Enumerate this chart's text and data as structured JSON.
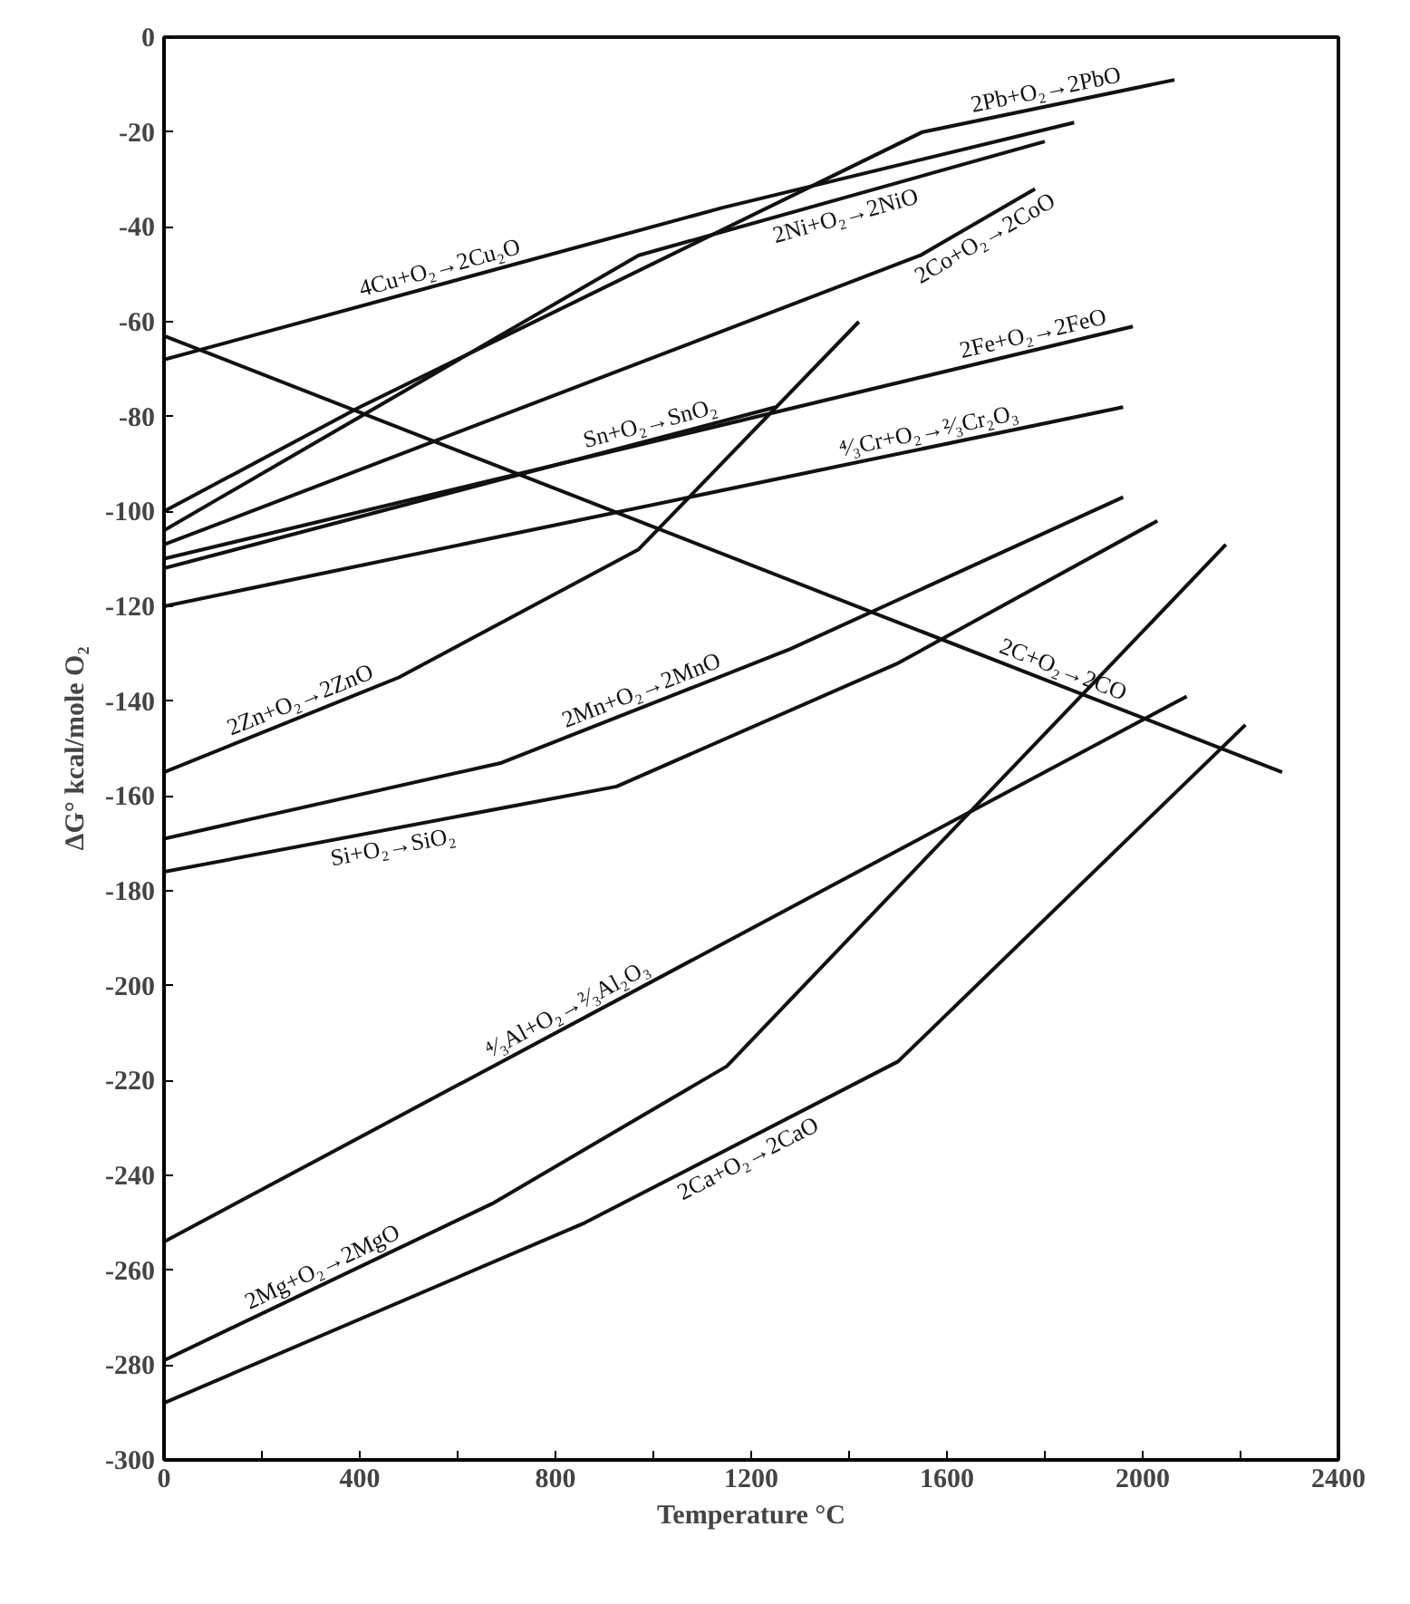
{
  "chart_data": {
    "type": "line",
    "xlabel": "Temperature °C",
    "ylabel": "ΔG° kcal/mole O₂",
    "xlim": [
      0,
      2400
    ],
    "ylim": [
      -300,
      0
    ],
    "xticks": [
      0,
      {
        "value": 200,
        "label": null
      },
      400,
      {
        "value": 600,
        "label": null
      },
      800,
      {
        "value": 1000,
        "label": null
      },
      1200,
      {
        "value": 1400,
        "label": null
      },
      1600,
      {
        "value": 1800,
        "label": null
      },
      2000,
      {
        "value": 2200,
        "label": null
      },
      2400
    ],
    "yticks": [
      -300,
      -280,
      -260,
      -240,
      -220,
      -200,
      -180,
      -160,
      -140,
      -120,
      -100,
      -80,
      -60,
      -40,
      -20,
      0
    ],
    "grid": false,
    "line_style": "solid",
    "series": [
      {
        "color": "#111111",
        "x": [
          0,
          1140,
          1860
        ],
        "values": [
          -68,
          -36,
          -18
        ]
      },
      {
        "color": "#111111",
        "x": [
          0,
          400,
          1550,
          2065
        ],
        "values": [
          -100,
          -78,
          -20,
          -9
        ]
      },
      {
        "color": "#111111",
        "x": [
          0,
          970,
          1800
        ],
        "values": [
          -104,
          -46,
          -22
        ]
      },
      {
        "color": "#111111",
        "x": [
          0,
          1546,
          1780
        ],
        "values": [
          -107,
          -46,
          -32
        ]
      },
      {
        "color": "#111111",
        "x": [
          0,
          1980
        ],
        "values": [
          -110,
          -61
        ]
      },
      {
        "color": "#111111",
        "x": [
          0,
          1250
        ],
        "values": [
          -112,
          -78
        ]
      },
      {
        "color": "#111111",
        "x": [
          0,
          480,
          970,
          1420
        ],
        "values": [
          -155,
          -135,
          -108,
          -60
        ]
      },
      {
        "color": "#111111",
        "x": [
          0,
          1960
        ],
        "values": [
          -120,
          -78
        ]
      },
      {
        "color": "#111111",
        "x": [
          0,
          690,
          1280,
          1960
        ],
        "values": [
          -169,
          -153,
          -129,
          -97
        ]
      },
      {
        "color": "#111111",
        "x": [
          0,
          2285
        ],
        "values": [
          -63,
          -155
        ]
      },
      {
        "color": "#111111",
        "x": [
          0,
          925,
          1500,
          2030
        ],
        "values": [
          -176,
          -158,
          -132,
          -102
        ]
      },
      {
        "color": "#111111",
        "x": [
          0,
          2090
        ],
        "values": [
          -254,
          -139
        ]
      },
      {
        "color": "#111111",
        "x": [
          0,
          670,
          1150,
          2170
        ],
        "values": [
          -279,
          -246,
          -217,
          -107
        ]
      },
      {
        "color": "#111111",
        "x": [
          0,
          860,
          1500,
          2210
        ],
        "values": [
          -288,
          -250,
          -216,
          -145
        ]
      }
    ],
    "annotations": [
      {
        "text": "4Cu+O₂→2Cu₂O",
        "x": 570,
        "y": -52
      },
      {
        "text": "2Pb+O₂→2PbO",
        "x": 1807.5,
        "y": -14.5
      },
      {
        "text": "2Ni+O₂→2NiO",
        "x": 1385,
        "y": -34
      },
      {
        "text": "2Co+O₂→2CoO",
        "x": 1663,
        "y": -39
      },
      {
        "text": "Sn+O₂→SnO₂",
        "x": 1000,
        "y": -84.8
      },
      {
        "text": "2Fe+O₂→2FeO",
        "x": 1782,
        "y": -65.9
      },
      {
        "text": "2Zn+O₂→2ZnO",
        "x": 288,
        "y": -143
      },
      {
        "text": "⁴⁄₃Cr+O₂→²⁄₃Cr₂O₃",
        "x": 1568,
        "y": -86.4
      },
      {
        "text": "2Mn+O₂→2MnO",
        "x": 985,
        "y": -141
      },
      {
        "text": "2C+O₂→2CO",
        "x": 1828,
        "y": -136.6
      },
      {
        "text": "Si+O₂→SiO₂",
        "x": 462.5,
        "y": -167
      },
      {
        "text": "⁴⁄₃Al+O₂→²⁄₃Al₂O₃",
        "x": 836,
        "y": -208
      },
      {
        "text": "2Mg+O₂→2MgO",
        "x": 335,
        "y": -262.5
      },
      {
        "text": "2Ca+O₂→2CaO",
        "x": 1180,
        "y": -233
      }
    ]
  }
}
